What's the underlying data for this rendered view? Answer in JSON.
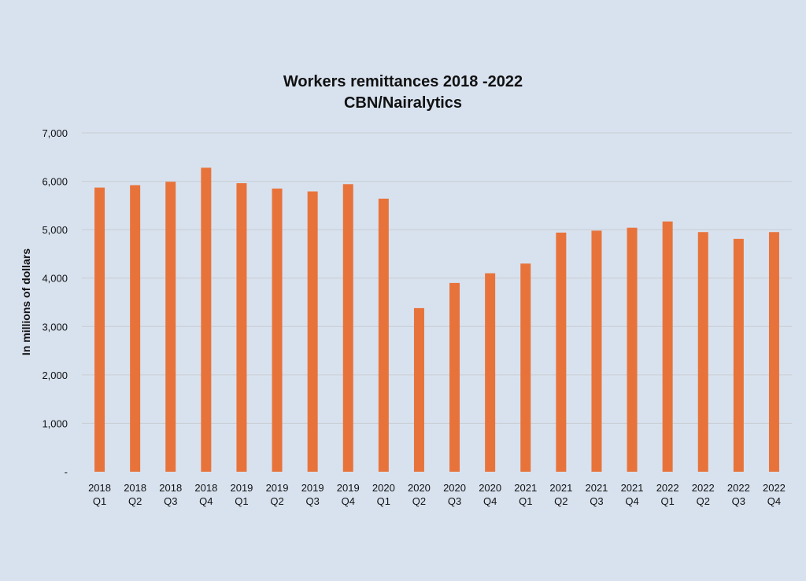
{
  "chart_data": {
    "type": "bar",
    "title": "Workers remittances 2018 -2022",
    "subtitle": "CBN/Nairalytics",
    "xlabel": "",
    "ylabel": "In millions of dollars",
    "ylim": [
      0,
      7000
    ],
    "yticks": [
      0,
      1000,
      2000,
      3000,
      4000,
      5000,
      6000,
      7000
    ],
    "ytick_labels": [
      "-",
      "1,000",
      "2,000",
      "3,000",
      "4,000",
      "5,000",
      "6,000",
      "7,000"
    ],
    "grid": true,
    "legend": "none",
    "bar_color": "#e8733a",
    "background_color": "#d8e2ef",
    "gridline_color": "#c9ccd1",
    "categories": [
      [
        "2018",
        "Q1"
      ],
      [
        "2018",
        "Q2"
      ],
      [
        "2018",
        "Q3"
      ],
      [
        "2018",
        "Q4"
      ],
      [
        "2019",
        "Q1"
      ],
      [
        "2019",
        "Q2"
      ],
      [
        "2019",
        "Q3"
      ],
      [
        "2019",
        "Q4"
      ],
      [
        "2020",
        "Q1"
      ],
      [
        "2020",
        "Q2"
      ],
      [
        "2020",
        "Q3"
      ],
      [
        "2020",
        "Q4"
      ],
      [
        "2021",
        "Q1"
      ],
      [
        "2021",
        "Q2"
      ],
      [
        "2021",
        "Q3"
      ],
      [
        "2021",
        "Q4"
      ],
      [
        "2022",
        "Q1"
      ],
      [
        "2022",
        "Q2"
      ],
      [
        "2022",
        "Q3"
      ],
      [
        "2022",
        "Q4"
      ]
    ],
    "values": [
      5870,
      5920,
      5990,
      6280,
      5960,
      5850,
      5790,
      5940,
      5640,
      3380,
      3900,
      4100,
      4300,
      4940,
      4980,
      5040,
      5170,
      4950,
      4810,
      4950
    ]
  }
}
